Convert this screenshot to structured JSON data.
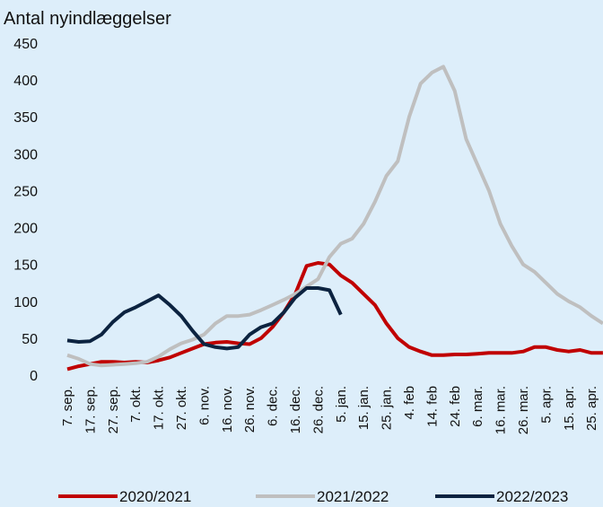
{
  "chart_data": {
    "type": "line",
    "title": "Antal nyindlæggelser",
    "categories": [
      "7. sep.",
      null,
      "17. sep.",
      null,
      "27. sep.",
      null,
      "7. okt.",
      null,
      "17. okt.",
      null,
      "27. okt.",
      null,
      "6. nov.",
      null,
      "16. nov.",
      null,
      "26. nov.",
      null,
      "6. dec.",
      null,
      "16. dec.",
      null,
      "26. dec.",
      null,
      "5. jan.",
      null,
      "15. jan.",
      null,
      "25. jan.",
      null,
      "4. feb",
      null,
      "14. feb",
      null,
      "24. feb",
      null,
      "6. mar.",
      null,
      "16. mar.",
      null,
      "26. mar.",
      null,
      "5. apr.",
      null,
      "15. apr.",
      null,
      "25. apr.",
      null
    ],
    "series": [
      {
        "name": "2020/2021",
        "color": "#c00000",
        "values": [
          8,
          12,
          15,
          18,
          18,
          17,
          18,
          17,
          20,
          24,
          30,
          36,
          42,
          44,
          45,
          43,
          42,
          50,
          65,
          85,
          110,
          148,
          152,
          150,
          135,
          125,
          110,
          95,
          70,
          50,
          38,
          32,
          27,
          27,
          28,
          28,
          29,
          30,
          30,
          30,
          32,
          38,
          38,
          34,
          32,
          34,
          30,
          30
        ]
      },
      {
        "name": "2021/2022",
        "color": "#bfbfbf",
        "values": [
          27,
          22,
          15,
          13,
          14,
          15,
          16,
          18,
          25,
          35,
          43,
          48,
          55,
          70,
          80,
          80,
          82,
          88,
          95,
          102,
          110,
          120,
          130,
          160,
          178,
          185,
          205,
          235,
          270,
          290,
          350,
          395,
          410,
          418,
          385,
          320,
          285,
          250,
          205,
          175,
          150,
          140,
          125,
          110,
          100,
          92,
          80,
          70
        ]
      },
      {
        "name": "2022/2023",
        "color": "#0c2340",
        "values": [
          47,
          45,
          46,
          55,
          72,
          85,
          92,
          100,
          108,
          95,
          80,
          60,
          42,
          38,
          36,
          38,
          55,
          65,
          70,
          85,
          105,
          118,
          118,
          115,
          82,
          null,
          null,
          null,
          null,
          null,
          null,
          null,
          null,
          null,
          null,
          null,
          null,
          null,
          null,
          null,
          null,
          null,
          null,
          null,
          null,
          null,
          null,
          null
        ]
      }
    ],
    "ylim": [
      0,
      450
    ],
    "yticks": [
      0,
      50,
      100,
      150,
      200,
      250,
      300,
      350,
      400,
      450
    ],
    "grid": false
  }
}
